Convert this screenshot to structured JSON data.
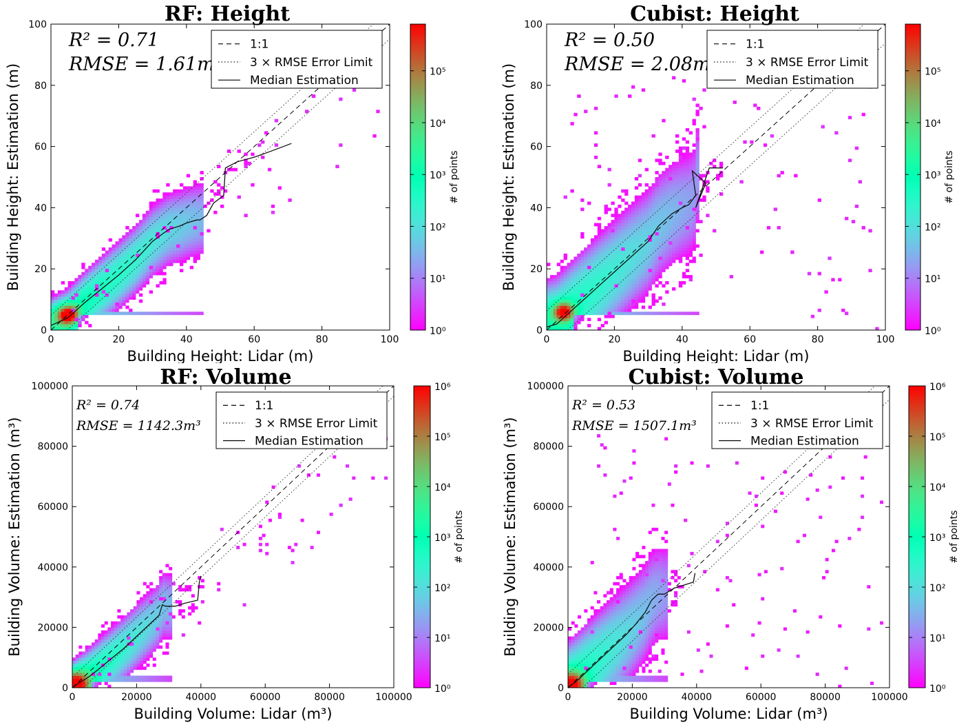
{
  "figure": {
    "colorbar_label": "# of points",
    "legend": {
      "one_to_one": "1:1",
      "error_limit": "3 × RMSE Error Limit",
      "median": "Median Estimation"
    }
  },
  "chart_data": [
    {
      "type": "heatmap",
      "title": "RF: Height",
      "xlabel": "Building Height: Lidar (m)",
      "ylabel": "Building Height: Estimation (m)",
      "xlim": [
        0,
        100
      ],
      "ylim": [
        0,
        100
      ],
      "xticks": [
        "0",
        "20",
        "40",
        "60",
        "80",
        "100"
      ],
      "yticks": [
        "0",
        "20",
        "40",
        "60",
        "80",
        "100"
      ],
      "stats": {
        "r2": "R² = 0.71",
        "rmse": "RMSE = 1.61m"
      },
      "rmse_value": 1.61,
      "colorbar": {
        "scale": "log",
        "min_exp": 0,
        "max_exp": 5.9,
        "ticks": [
          "10⁰",
          "10¹",
          "10²",
          "10³",
          "10⁴",
          "10⁵"
        ]
      },
      "colormap": "rainbow",
      "legend_position": "top-right",
      "series": [
        {
          "name": "1:1",
          "style": "dashed",
          "x": [
            0,
            100
          ],
          "y": [
            0,
            100
          ]
        },
        {
          "name": "3 × RMSE Error Limit",
          "style": "dotted",
          "offset": 4.83
        },
        {
          "name": "Median Estimation",
          "style": "solid",
          "x": [
            0,
            5,
            10,
            15,
            20,
            25,
            30,
            33,
            35,
            38,
            40,
            43,
            44,
            46,
            48,
            51,
            51.5,
            55,
            60,
            65,
            71
          ],
          "y": [
            1.5,
            4,
            9,
            13.5,
            18,
            23,
            29,
            31.5,
            33,
            34,
            35,
            36,
            36,
            37.5,
            41.5,
            44,
            53,
            55,
            56.5,
            58.5,
            61
          ]
        }
      ],
      "density_peak": [
        5,
        5
      ]
    },
    {
      "type": "heatmap",
      "title": "Cubist: Height",
      "xlabel": "Building Height: Lidar (m)",
      "ylabel": "Building Height: Estimation (m)",
      "xlim": [
        0,
        100
      ],
      "ylim": [
        0,
        100
      ],
      "xticks": [
        "0",
        "20",
        "40",
        "60",
        "80",
        "100"
      ],
      "yticks": [
        "0",
        "20",
        "40",
        "60",
        "80",
        "100"
      ],
      "stats": {
        "r2": "R² = 0.50",
        "rmse": "RMSE = 2.08m"
      },
      "rmse_value": 2.08,
      "colorbar": {
        "scale": "log",
        "min_exp": 0,
        "max_exp": 5.9,
        "ticks": [
          "10⁰",
          "10¹",
          "10²",
          "10³",
          "10⁴",
          "10⁵"
        ]
      },
      "colormap": "rainbow",
      "legend_position": "top-right",
      "series": [
        {
          "name": "1:1",
          "style": "dashed",
          "x": [
            0,
            100
          ],
          "y": [
            0,
            100
          ]
        },
        {
          "name": "3 × RMSE Error Limit",
          "style": "dotted",
          "offset": 6.24
        },
        {
          "name": "Median Estimation",
          "style": "solid",
          "x": [
            0,
            3,
            6,
            10,
            15,
            20,
            25,
            30,
            33,
            35,
            37,
            40,
            42,
            44,
            43,
            47,
            44,
            48,
            52
          ],
          "y": [
            1,
            2,
            5,
            9,
            14,
            19,
            24,
            29,
            34,
            36,
            38,
            40,
            41,
            44,
            52,
            48,
            40,
            53,
            53
          ]
        }
      ],
      "density_peak": [
        5,
        6
      ]
    },
    {
      "type": "heatmap",
      "title": "RF: Volume",
      "xlabel": "Building Volume: Lidar (m³)",
      "ylabel": "Building Volume: Estimation (m³)",
      "xlim": [
        0,
        100000
      ],
      "ylim": [
        0,
        100000
      ],
      "xticks": [
        "0",
        "20000",
        "40000",
        "60000",
        "80000",
        "100000"
      ],
      "yticks": [
        "0",
        "20000",
        "40000",
        "60000",
        "80000",
        "100000"
      ],
      "stats": {
        "r2": "R² = 0.74",
        "rmse": "RMSE = 1142.3m³"
      },
      "rmse_value": 1142.3,
      "colorbar": {
        "scale": "log",
        "min_exp": 0,
        "max_exp": 6,
        "ticks": [
          "10⁰",
          "10¹",
          "10²",
          "10³",
          "10⁴",
          "10⁵",
          "10⁶"
        ]
      },
      "colormap": "rainbow",
      "legend_position": "top-right",
      "series": [
        {
          "name": "1:1",
          "style": "dashed",
          "x": [
            0,
            100000
          ],
          "y": [
            0,
            100000
          ]
        },
        {
          "name": "3 × RMSE Error Limit",
          "style": "dotted",
          "offset": 3427
        },
        {
          "name": "Median Estimation",
          "style": "solid",
          "x": [
            0,
            2000,
            5000,
            8000,
            12000,
            16000,
            20000,
            24000,
            27000,
            28000,
            29000,
            32000,
            35000,
            39000,
            39500,
            40000
          ],
          "y": [
            0,
            1500,
            3500,
            6000,
            9500,
            13000,
            17000,
            21000,
            24000,
            27500,
            27000,
            27000,
            28000,
            29000,
            35000,
            37000
          ]
        }
      ],
      "density_peak": [
        1000,
        1000
      ]
    },
    {
      "type": "heatmap",
      "title": "Cubist: Volume",
      "xlabel": "Building Volume: Lidar (m³)",
      "ylabel": "Building Volume: Estimation (m³)",
      "xlim": [
        0,
        100000
      ],
      "ylim": [
        0,
        100000
      ],
      "xticks": [
        "0",
        "20000",
        "40000",
        "60000",
        "80000",
        "100000"
      ],
      "yticks": [
        "0",
        "20000",
        "40000",
        "60000",
        "80000",
        "100000"
      ],
      "stats": {
        "r2": "R² = 0.53",
        "rmse": "RMSE = 1507.1m³"
      },
      "rmse_value": 1507.1,
      "colorbar": {
        "scale": "log",
        "min_exp": 0,
        "max_exp": 6,
        "ticks": [
          "10⁰",
          "10¹",
          "10²",
          "10³",
          "10⁴",
          "10⁵",
          "10⁶"
        ]
      },
      "colormap": "rainbow",
      "legend_position": "top-right",
      "series": [
        {
          "name": "1:1",
          "style": "dashed",
          "x": [
            0,
            100000
          ],
          "y": [
            0,
            100000
          ]
        },
        {
          "name": "3 × RMSE Error Limit",
          "style": "dotted",
          "offset": 4521
        },
        {
          "name": "Median Estimation",
          "style": "solid",
          "x": [
            0,
            3000,
            6000,
            10000,
            14000,
            18000,
            21000,
            24000,
            26000,
            28000,
            30000,
            33000,
            36000,
            39000,
            39500
          ],
          "y": [
            0,
            2500,
            5500,
            9500,
            13500,
            17500,
            21000,
            25000,
            29000,
            31000,
            31000,
            33000,
            34000,
            35000,
            38000
          ]
        }
      ],
      "density_peak": [
        1000,
        1000
      ]
    }
  ]
}
